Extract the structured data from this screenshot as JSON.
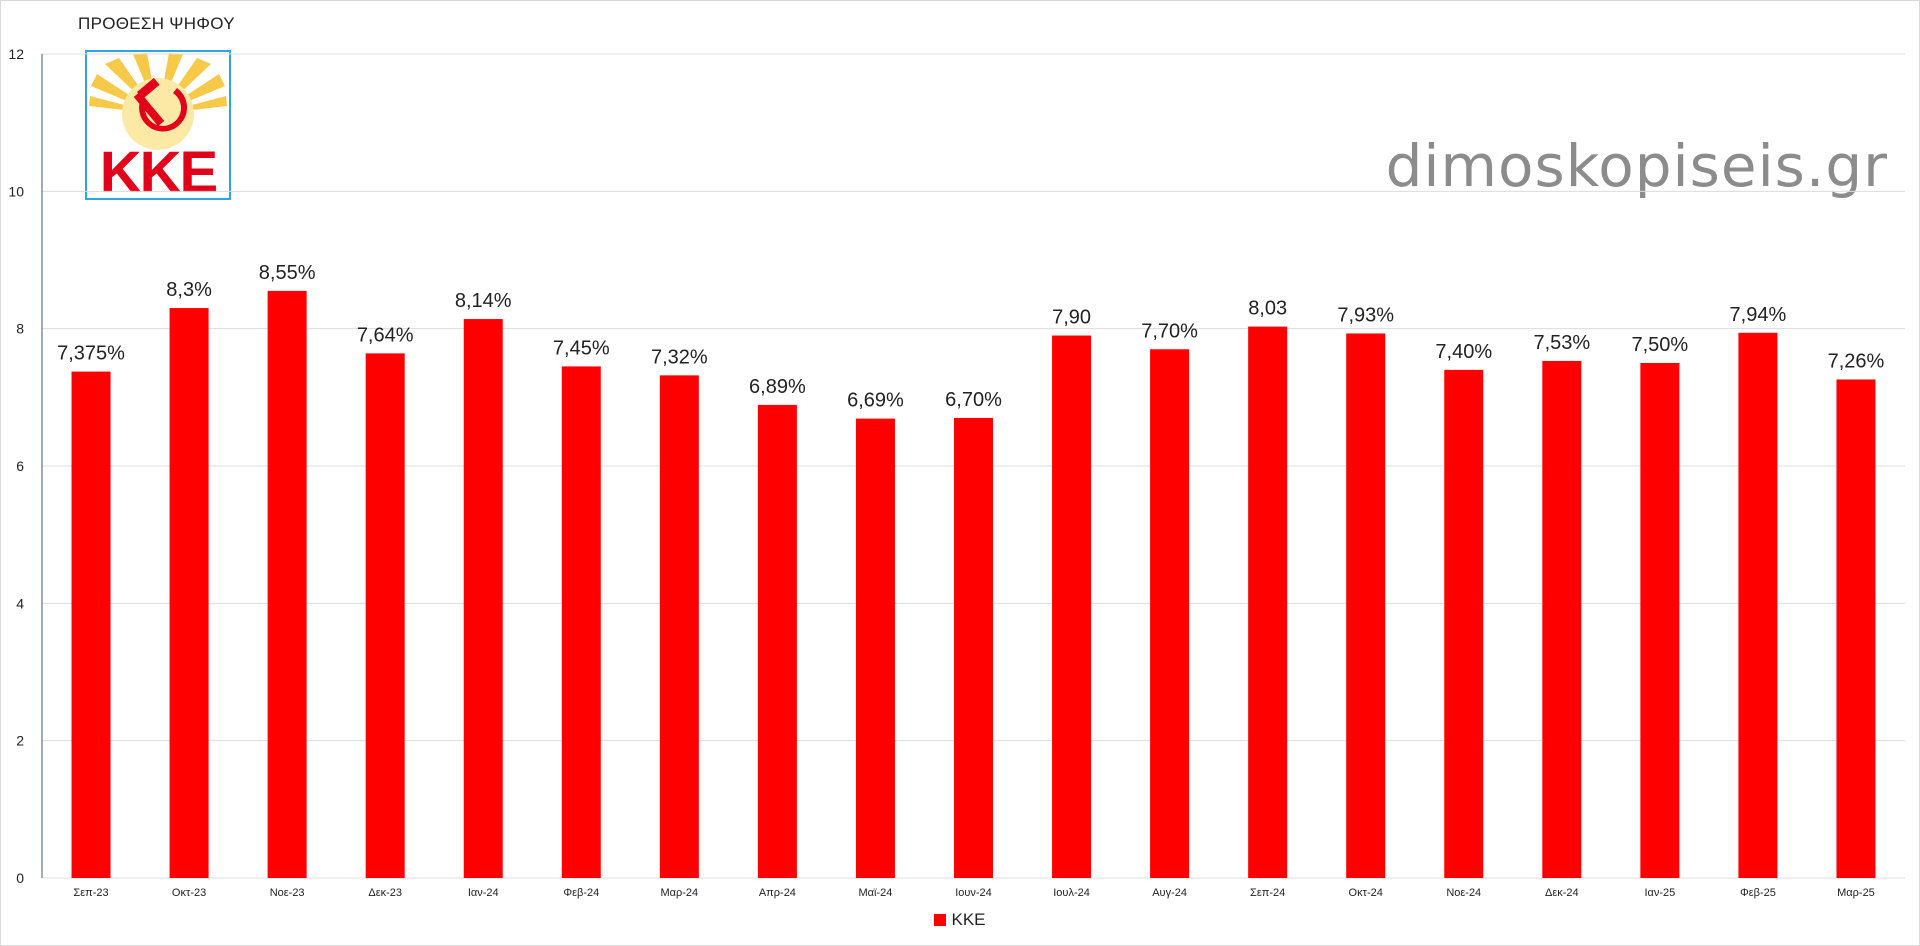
{
  "title": "ΠΡΟΘΕΣΗ ΨΗΦΟΥ",
  "watermark": "dimoskopiseis.gr",
  "logo": {
    "text": "ΚΚΕ",
    "icon": "hammer-sickle-icon"
  },
  "colors": {
    "bar": "#ff0000",
    "grid": "#dcdcdc",
    "axis": "#7f8fa6",
    "text": "#222222",
    "logo_border": "#2aa7df"
  },
  "chart_data": {
    "type": "bar",
    "title": "ΠΡΟΘΕΣΗ ΨΗΦΟΥ",
    "categories": [
      "Σεπ-23",
      "Οκτ-23",
      "Νοε-23",
      "Δεκ-23",
      "Ιαν-24",
      "Φεβ-24",
      "Μαρ-24",
      "Απρ-24",
      "Μαϊ-24",
      "Ιουν-24",
      "Ιουλ-24",
      "Αυγ-24",
      "Σεπ-24",
      "Οκτ-24",
      "Νοε-24",
      "Δεκ-24",
      "Ιαν-25",
      "Φεβ-25",
      "Μαρ-25"
    ],
    "series": [
      {
        "name": "ΚΚΕ",
        "color": "#ff0000",
        "values": [
          7.375,
          8.3,
          8.55,
          7.64,
          8.14,
          7.45,
          7.32,
          6.89,
          6.69,
          6.7,
          7.9,
          7.7,
          8.03,
          7.93,
          7.4,
          7.53,
          7.5,
          7.94,
          7.26
        ],
        "labels": [
          "7,375%",
          "8,3%",
          "8,55%",
          "7,64%",
          "8,14%",
          "7,45%",
          "7,32%",
          "6,89%",
          "6,69%",
          "6,70%",
          "7,90",
          "7,70%",
          "8,03",
          "7,93%",
          "7,40%",
          "7,53%",
          "7,50%",
          "7,94%",
          "7,26%"
        ]
      }
    ],
    "ylim": [
      0,
      12
    ],
    "yticks": [
      0,
      2,
      4,
      6,
      8,
      10,
      12
    ],
    "grid": true,
    "legend_position": "bottom-center",
    "xlabel": "",
    "ylabel": ""
  }
}
